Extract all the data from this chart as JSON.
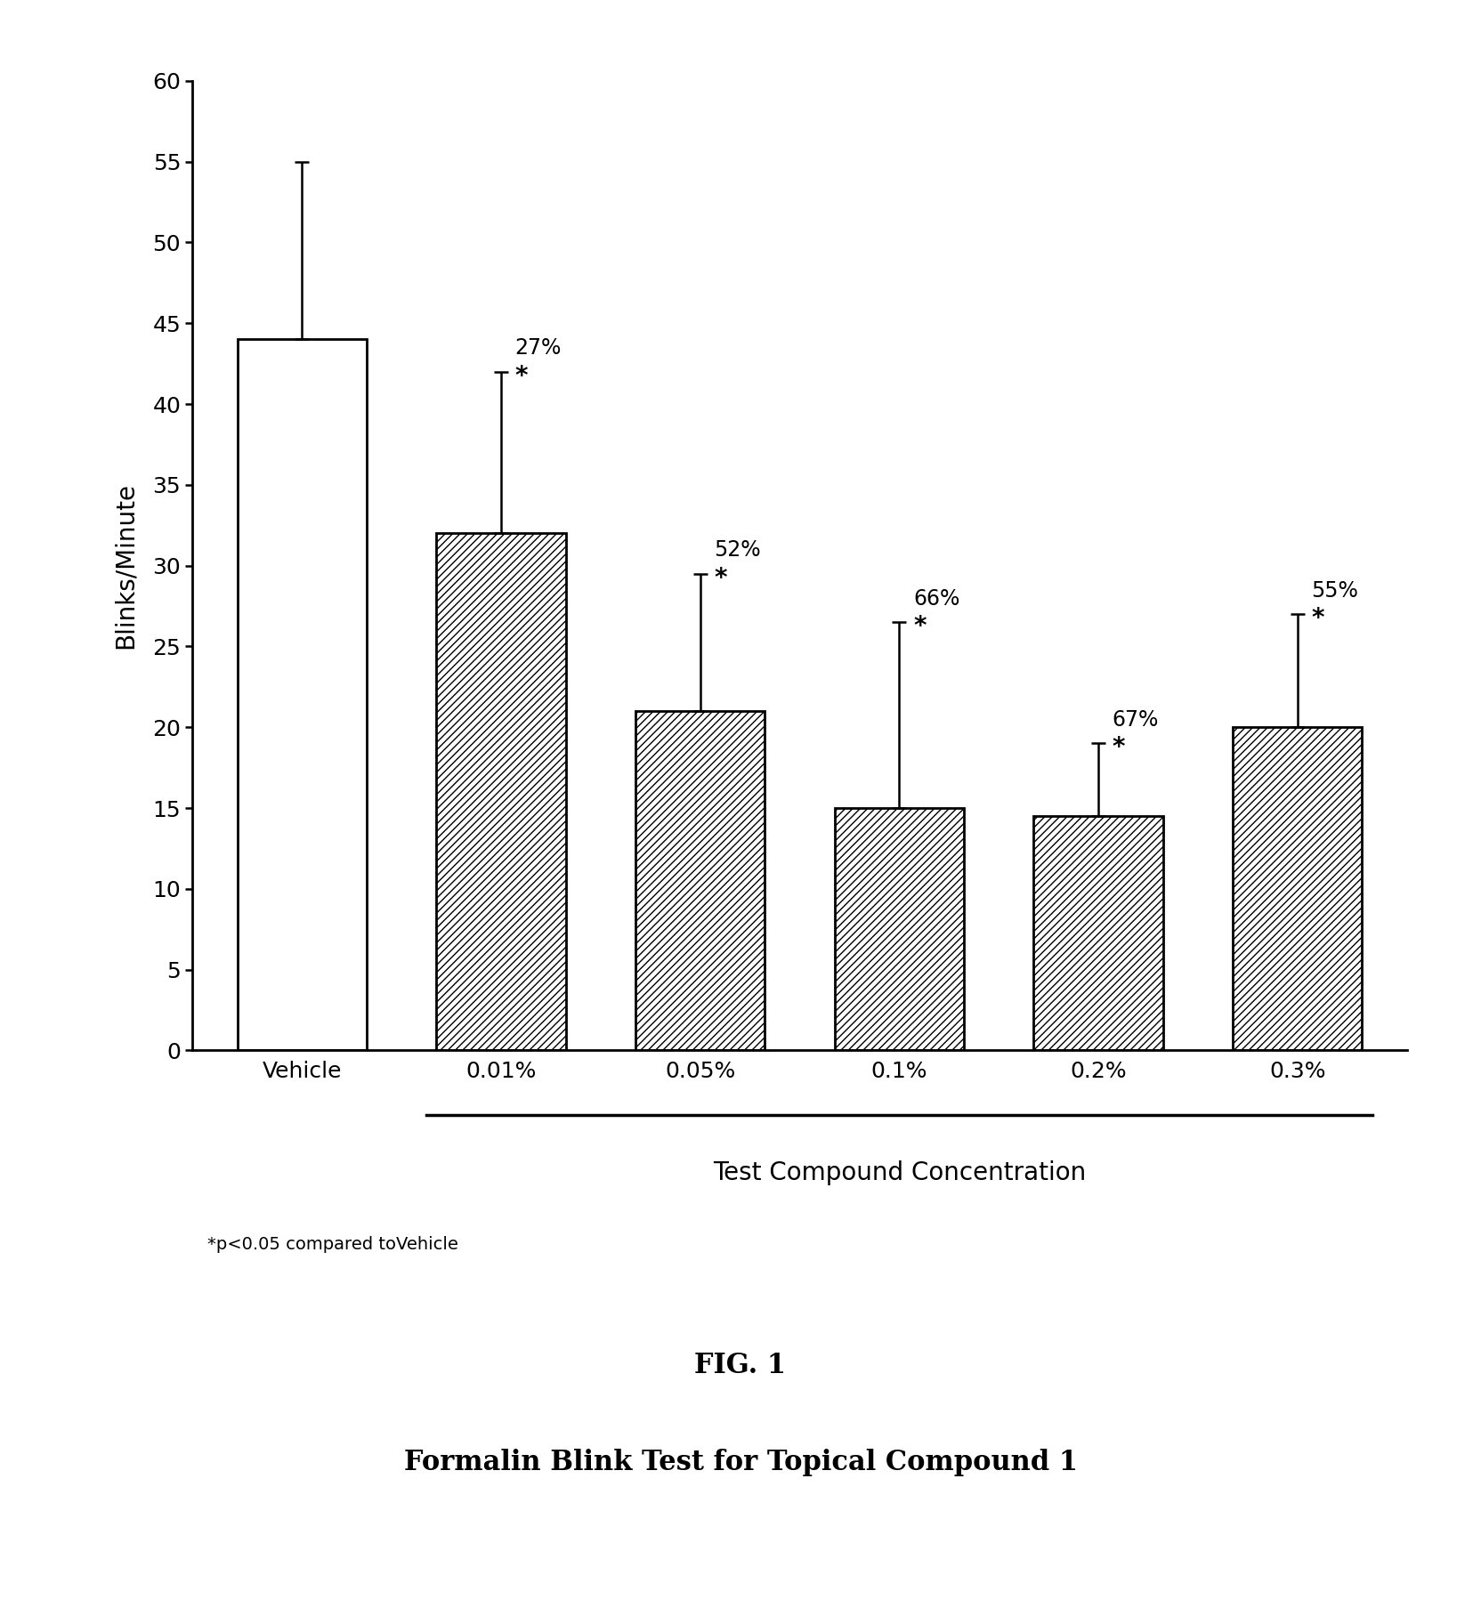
{
  "categories": [
    "Vehicle",
    "0.01%",
    "0.05%",
    "0.1%",
    "0.2%",
    "0.3%"
  ],
  "values": [
    44.0,
    32.0,
    21.0,
    15.0,
    14.5,
    20.0
  ],
  "errors": [
    11.0,
    10.0,
    8.5,
    11.5,
    4.5,
    7.0
  ],
  "hatch_pattern": "////",
  "edge_color": "black",
  "percent_labels": [
    "",
    "27%",
    "52%",
    "66%",
    "67%",
    "55%"
  ],
  "sig_stars": [
    false,
    true,
    true,
    true,
    true,
    true
  ],
  "ylabel": "Blinks/Minute",
  "xlabel_bracket": "Test Compound Concentration",
  "ylim": [
    0,
    60
  ],
  "yticks": [
    0,
    5,
    10,
    15,
    20,
    25,
    30,
    35,
    40,
    45,
    50,
    55,
    60
  ],
  "footnote": "*p<0.05 compared toVehicle",
  "fig_label": "FIG. 1",
  "fig_title": "Formalin Blink Test for Topical Compound 1",
  "background_color": "white",
  "bar_width": 0.65
}
